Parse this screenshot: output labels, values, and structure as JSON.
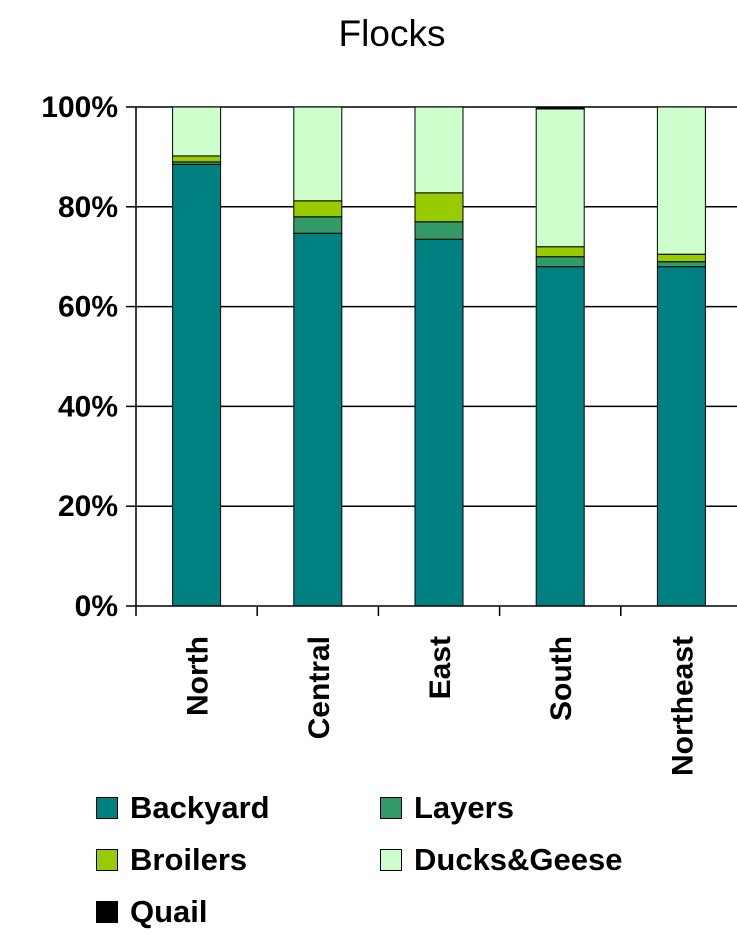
{
  "chart_data": {
    "type": "bar",
    "stacked": true,
    "percent": true,
    "title": "Flocks",
    "xlabel": "",
    "ylabel": "",
    "ylim": [
      0,
      100
    ],
    "yticks": [
      "0%",
      "20%",
      "40%",
      "60%",
      "80%",
      "100%"
    ],
    "grid": true,
    "legend_position": "bottom",
    "categories": [
      "North",
      "Central",
      "East",
      "South",
      "Northeast"
    ],
    "series": [
      {
        "name": "Backyard",
        "color": "#008080",
        "values": [
          88.5,
          74.7,
          73.5,
          68.0,
          68.0
        ]
      },
      {
        "name": "Layers",
        "color": "#339966",
        "values": [
          0.5,
          3.3,
          3.5,
          2.0,
          1.0
        ]
      },
      {
        "name": "Broilers",
        "color": "#99CC00",
        "values": [
          1.2,
          3.2,
          5.8,
          2.0,
          1.5
        ]
      },
      {
        "name": "Ducks&Geese",
        "color": "#CCFFCC",
        "values": [
          9.8,
          18.8,
          17.2,
          27.6,
          29.5
        ]
      },
      {
        "name": "Quail",
        "color": "#000000",
        "values": [
          0.0,
          0.0,
          0.0,
          0.4,
          0.0
        ]
      }
    ]
  }
}
